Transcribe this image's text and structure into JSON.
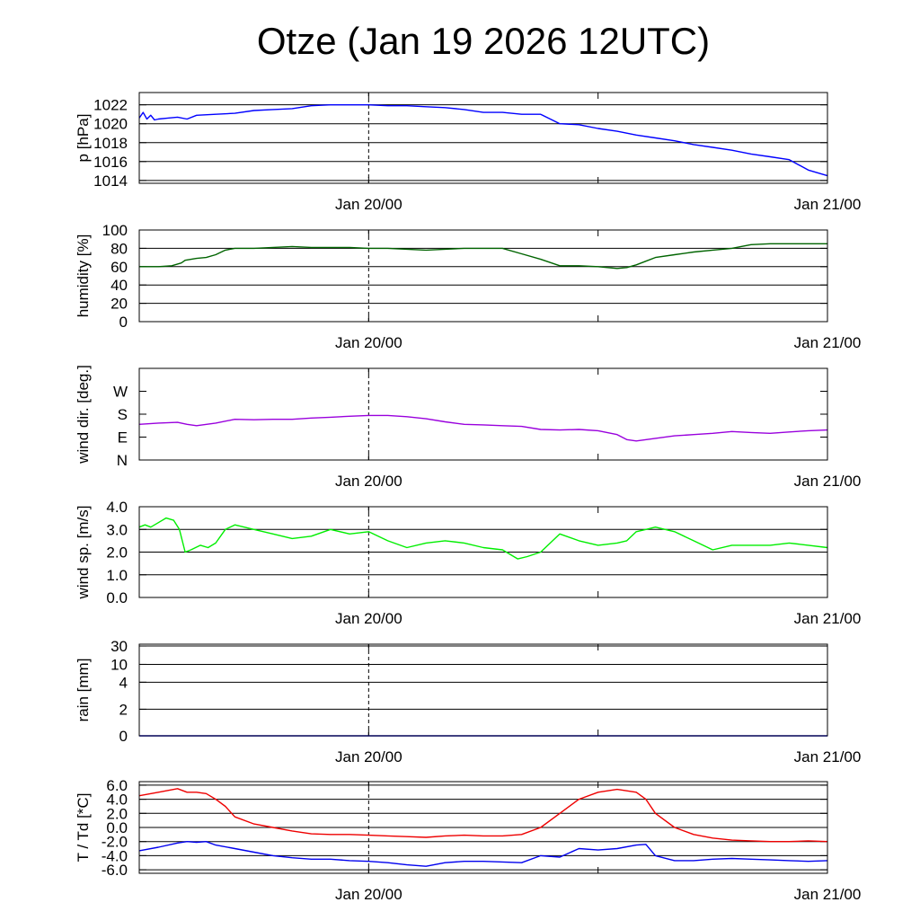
{
  "title": "Otze (Jan 19 2026 12UTC)",
  "time_axis": {
    "labels": [
      "Jan 20/00",
      "Jan 21/00"
    ],
    "label_positions_hours": [
      12,
      36
    ],
    "range_hours": [
      0,
      36
    ],
    "minor_tick_hours": [
      24
    ],
    "dashed_marker_hour": 12
  },
  "chart_data": [
    {
      "type": "line",
      "ylabel": "p [hPa]",
      "ylim": [
        1013.7,
        1023.3
      ],
      "yticks": [
        1014,
        1016,
        1018,
        1020,
        1022
      ],
      "ytick_labels": [
        "1014",
        "1016",
        "1018",
        "1020",
        "1022"
      ],
      "grid": true,
      "series": [
        {
          "color": "#0000ff",
          "x": [
            0,
            0.2,
            0.4,
            0.6,
            0.8,
            1,
            1.5,
            2,
            2.5,
            3,
            4,
            5,
            6,
            7,
            8,
            9,
            10,
            11,
            12,
            13,
            14,
            15,
            16,
            17,
            18,
            19,
            20,
            21,
            22,
            23,
            24,
            25,
            26,
            27,
            28,
            29,
            30,
            31,
            32,
            33,
            34,
            35,
            36
          ],
          "y": [
            1020.6,
            1021.2,
            1020.5,
            1020.9,
            1020.4,
            1020.5,
            1020.6,
            1020.7,
            1020.5,
            1020.9,
            1021.0,
            1021.1,
            1021.4,
            1021.5,
            1021.6,
            1021.9,
            1022.0,
            1022.0,
            1022.0,
            1021.9,
            1021.9,
            1021.8,
            1021.7,
            1021.5,
            1021.2,
            1021.2,
            1021.0,
            1021.0,
            1020.0,
            1019.9,
            1019.5,
            1019.2,
            1018.8,
            1018.5,
            1018.2,
            1017.8,
            1017.5,
            1017.2,
            1016.8,
            1016.5,
            1016.2,
            1015.1,
            1014.5
          ]
        }
      ]
    },
    {
      "type": "line",
      "ylabel": "humidity [%]",
      "ylim": [
        0,
        100
      ],
      "yticks": [
        0,
        20,
        40,
        60,
        80,
        100
      ],
      "ytick_labels": [
        "0",
        "20",
        "40",
        "60",
        "80",
        "100"
      ],
      "grid": true,
      "series": [
        {
          "color": "#006400",
          "x": [
            0,
            1,
            1.7,
            2.2,
            2.4,
            3.0,
            3.5,
            4,
            4.5,
            5,
            6,
            7,
            8,
            9,
            10,
            11,
            12,
            13,
            14,
            15,
            16,
            17,
            18,
            19,
            20,
            21,
            22,
            23,
            24,
            25,
            25.5,
            26,
            26.5,
            27,
            28,
            29,
            30,
            31,
            32,
            33,
            34,
            35,
            36
          ],
          "y": [
            60,
            60,
            61,
            64,
            67,
            69,
            70,
            73,
            78,
            80,
            80,
            81,
            82,
            81,
            81,
            81,
            80,
            80,
            79,
            78,
            79,
            80,
            80,
            80,
            74,
            68,
            61,
            61,
            60,
            58,
            59,
            62,
            66,
            70,
            73,
            76,
            78,
            80,
            84,
            85,
            85,
            85,
            85
          ]
        }
      ]
    },
    {
      "type": "line",
      "ylabel": "wind dir. [deg.]",
      "ylim": [
        0,
        360
      ],
      "yticks": [
        0,
        90,
        180,
        270
      ],
      "ytick_labels": [
        "N",
        "E",
        "S",
        "W"
      ],
      "grid": false,
      "series": [
        {
          "color": "#9900dd",
          "x": [
            0,
            1,
            2,
            2.5,
            3,
            4,
            5,
            6,
            7,
            8,
            9,
            10,
            11,
            12,
            13,
            14,
            15,
            16,
            17,
            18,
            19,
            20,
            21,
            22,
            23,
            24,
            25,
            25.5,
            26,
            27,
            28,
            29,
            30,
            31,
            32,
            33,
            34,
            35,
            36
          ],
          "y": [
            140,
            145,
            148,
            140,
            135,
            145,
            160,
            158,
            160,
            160,
            165,
            168,
            172,
            175,
            175,
            170,
            162,
            150,
            140,
            138,
            135,
            132,
            120,
            118,
            120,
            115,
            100,
            80,
            75,
            85,
            95,
            100,
            105,
            112,
            108,
            105,
            110,
            115,
            118
          ]
        }
      ]
    },
    {
      "type": "line",
      "ylabel": "wind sp. [m/s]",
      "ylim": [
        0,
        4
      ],
      "yticks": [
        0,
        1,
        2,
        3,
        4
      ],
      "ytick_labels": [
        "0.0",
        "1.0",
        "2.0",
        "3.0",
        "4.0"
      ],
      "grid": true,
      "series": [
        {
          "color": "#00ee00",
          "x": [
            0,
            0.3,
            0.6,
            1.0,
            1.4,
            1.8,
            2.1,
            2.4,
            2.7,
            3.2,
            3.6,
            4.0,
            4.5,
            5.0,
            6,
            7,
            8,
            9,
            10,
            11,
            12,
            13,
            14,
            15,
            16,
            17,
            18,
            19,
            19.8,
            20.3,
            21.0,
            22,
            23,
            24,
            25,
            25.5,
            26,
            26.5,
            27,
            28,
            29,
            30,
            31,
            32,
            33,
            34,
            35,
            36
          ],
          "y": [
            3.1,
            3.2,
            3.1,
            3.3,
            3.5,
            3.4,
            3.0,
            2.0,
            2.1,
            2.3,
            2.2,
            2.4,
            3.0,
            3.2,
            3.0,
            2.8,
            2.6,
            2.7,
            3.0,
            2.8,
            2.9,
            2.5,
            2.2,
            2.4,
            2.5,
            2.4,
            2.2,
            2.1,
            1.7,
            1.8,
            2.0,
            2.8,
            2.5,
            2.3,
            2.4,
            2.5,
            2.9,
            3.0,
            3.1,
            2.9,
            2.5,
            2.1,
            2.3,
            2.3,
            2.3,
            2.4,
            2.3,
            2.2
          ]
        }
      ]
    },
    {
      "type": "line",
      "ylabel": "rain [mm]",
      "ylim": [
        0,
        30
      ],
      "yscale": "nonlinear",
      "yticks": [
        0,
        2,
        4,
        10,
        30
      ],
      "ytick_labels": [
        "0",
        "2",
        "4",
        "10",
        "30"
      ],
      "grid": true,
      "series": [
        {
          "color": "#0000ff",
          "x": [
            0,
            36
          ],
          "y": [
            0,
            0
          ]
        }
      ]
    },
    {
      "type": "line",
      "ylabel": "T / Td [*C]",
      "ylim": [
        -6.5,
        6.5
      ],
      "yticks": [
        -6,
        -4,
        -2,
        0,
        2,
        4,
        6
      ],
      "ytick_labels": [
        "-6.0",
        "-4.0",
        "-2.0",
        "0.0",
        "2.0",
        "4.0",
        "6.0"
      ],
      "grid": true,
      "series": [
        {
          "color": "#ee0000",
          "x": [
            0,
            1,
            2,
            2.5,
            3,
            3.5,
            4,
            4.5,
            5,
            6,
            7,
            8,
            9,
            10,
            11,
            12,
            13,
            14,
            15,
            16,
            17,
            18,
            19,
            20,
            21,
            22,
            23,
            24,
            25,
            26,
            26.5,
            27,
            28,
            29,
            30,
            31,
            32,
            33,
            34,
            35,
            36
          ],
          "y": [
            4.5,
            5.0,
            5.5,
            5.0,
            5.0,
            4.8,
            4.0,
            3.0,
            1.5,
            0.5,
            0,
            -0.5,
            -0.9,
            -1.0,
            -1.0,
            -1.1,
            -1.2,
            -1.3,
            -1.4,
            -1.2,
            -1.1,
            -1.2,
            -1.2,
            -1.0,
            0,
            2.0,
            4.0,
            5.0,
            5.4,
            5.0,
            4.0,
            2.0,
            0,
            -1.0,
            -1.5,
            -1.8,
            -1.9,
            -2.0,
            -2.0,
            -1.9,
            -2.0
          ]
        },
        {
          "color": "#0000ee",
          "x": [
            0,
            1,
            2,
            2.5,
            3,
            3.5,
            4,
            5,
            6,
            7,
            8,
            9,
            10,
            11,
            12,
            13,
            14,
            15,
            16,
            17,
            18,
            19,
            20,
            21,
            22,
            23,
            24,
            25,
            26,
            26.5,
            27,
            28,
            29,
            30,
            31,
            32,
            33,
            34,
            35,
            36
          ],
          "y": [
            -3.3,
            -2.8,
            -2.2,
            -2.0,
            -2.1,
            -2.0,
            -2.5,
            -3.0,
            -3.5,
            -4.0,
            -4.3,
            -4.5,
            -4.5,
            -4.7,
            -4.8,
            -5.0,
            -5.3,
            -5.5,
            -5.0,
            -4.8,
            -4.8,
            -4.9,
            -5.0,
            -4.0,
            -4.2,
            -3.0,
            -3.2,
            -3.0,
            -2.5,
            -2.4,
            -4.0,
            -4.7,
            -4.7,
            -4.5,
            -4.4,
            -4.5,
            -4.6,
            -4.7,
            -4.8,
            -4.7
          ]
        }
      ]
    }
  ]
}
